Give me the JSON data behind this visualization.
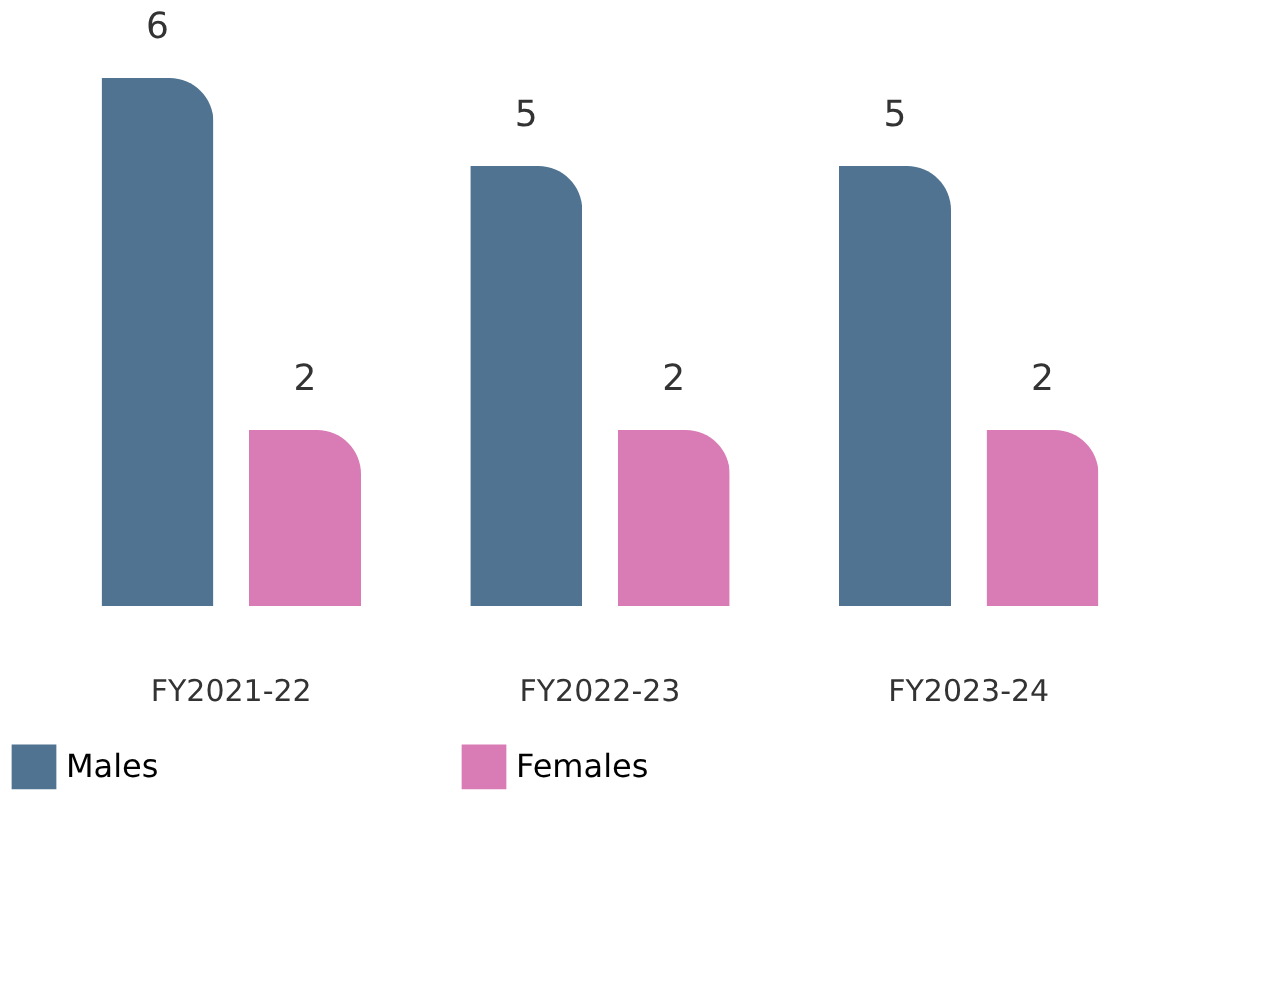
{
  "chart_data": {
    "type": "bar",
    "categories": [
      "FY2021-22",
      "FY2022-23",
      "FY2023-24"
    ],
    "series": [
      {
        "name": "Males",
        "color": "#4f7390",
        "values": [
          6,
          5,
          5
        ]
      },
      {
        "name": "Females",
        "color": "#d97bb5",
        "values": [
          2,
          2,
          2
        ]
      }
    ],
    "data_labels": true,
    "legend": "bottom left",
    "grid": false
  }
}
